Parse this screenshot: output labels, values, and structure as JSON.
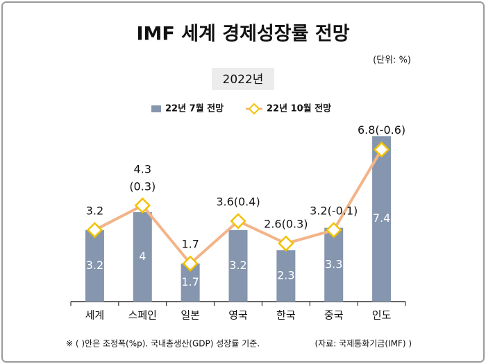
{
  "chart_data": {
    "type": "bar-line",
    "title": "IMF 세계 경제성장률 전망",
    "unit": "(단위: %)",
    "subtitle": "2022년",
    "categories": [
      "세계",
      "스페인",
      "일본",
      "영국",
      "한국",
      "중국",
      "인도"
    ],
    "series": [
      {
        "name": "22년 7월 전망",
        "type": "bar",
        "color": "#8596ae",
        "values": [
          3.2,
          4,
          1.7,
          3.2,
          2.3,
          3.3,
          7.4
        ]
      },
      {
        "name": "22년 10월 전망",
        "type": "line",
        "color": "#f2b488",
        "marker_color": "#f2c200",
        "values": [
          3.2,
          4.3,
          1.7,
          3.6,
          2.6,
          3.2,
          6.8
        ],
        "value_labels": [
          "3.2",
          "4.3\n(0.3)",
          "1.7",
          "3.6(0.4)",
          "2.6(0.3)",
          "3.2(-0.1)",
          "6.8(-0.6)"
        ]
      }
    ],
    "ylim": [
      0,
      8
    ],
    "footnote": "※ ( )안은 조정폭(%p). 국내총생산(GDP) 성장률 기준.",
    "source": "(자료: 국제통화기금(IMF) )"
  }
}
